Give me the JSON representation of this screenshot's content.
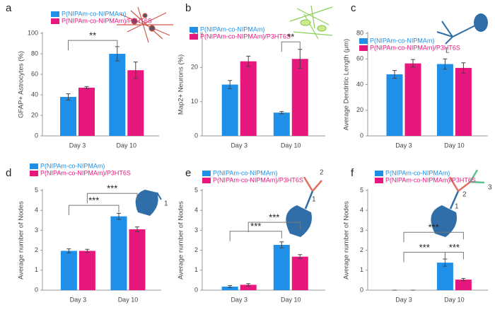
{
  "chart_data": [
    {
      "type": "bar",
      "label": "a",
      "ylabel": "GFAP+ Astrocytes (%)",
      "categories": [
        "Day 3",
        "Day 10"
      ],
      "ylim": [
        0,
        100
      ],
      "yticks": [
        0,
        20,
        40,
        60,
        80,
        100
      ],
      "series": [
        {
          "name": "P(NIPAm-co-NIPMAm)",
          "color": "#1f8fe8",
          "values": [
            38,
            80
          ],
          "errors": [
            3,
            7
          ]
        },
        {
          "name": "P(NIPAm-co-NIPMAm)/P3HT6S",
          "color": "#e8177d",
          "values": [
            47,
            64
          ],
          "errors": [
            1,
            8
          ]
        }
      ],
      "annotations": [
        "**"
      ]
    },
    {
      "type": "bar",
      "label": "b",
      "ylabel": "Map2+ Neurons (%)",
      "categories": [
        "Day 3",
        "Day 10"
      ],
      "ylim": [
        0,
        30
      ],
      "yticks": [
        0,
        10,
        20,
        30
      ],
      "series": [
        {
          "name": "P(NIPAm-co-NIPMAm)",
          "color": "#1f8fe8",
          "values": [
            15,
            6.8
          ],
          "errors": [
            1.2,
            0.3
          ]
        },
        {
          "name": "P(NIPAm-co-NIPMAm)/P3HT6S",
          "color": "#e8177d",
          "values": [
            21.8,
            22.5
          ],
          "errors": [
            1.5,
            2.8
          ]
        }
      ],
      "annotations": [
        "**"
      ]
    },
    {
      "type": "bar",
      "label": "c",
      "ylabel": "Average Dendritic Length (μm)",
      "categories": [
        "Day 3",
        "Day 10"
      ],
      "ylim": [
        0,
        80
      ],
      "yticks": [
        0,
        20,
        40,
        60,
        80
      ],
      "series": [
        {
          "name": "P(NIPAm-co-NIPMAm)",
          "color": "#1f8fe8",
          "values": [
            48,
            56
          ],
          "errors": [
            3,
            4
          ]
        },
        {
          "name": "P(NIPAm-co-NIPMAm)/P3HT6S",
          "color": "#e8177d",
          "values": [
            56.5,
            53
          ],
          "errors": [
            3,
            4
          ]
        }
      ],
      "annotations": [],
      "icon_labels": [
        "L"
      ]
    },
    {
      "type": "bar",
      "label": "d",
      "ylabel": "Average number of Nodes",
      "categories": [
        "Day 3",
        "Day 10"
      ],
      "ylim": [
        0,
        5
      ],
      "yticks": [
        0,
        1,
        2,
        3,
        4,
        5
      ],
      "series": [
        {
          "name": "P(NIPAm-co-NIPMAm)",
          "color": "#1f8fe8",
          "values": [
            1.97,
            3.7
          ],
          "errors": [
            0.1,
            0.15
          ]
        },
        {
          "name": "P(NIPAm-co-NIPMAm)/P3HT6S",
          "color": "#e8177d",
          "values": [
            1.97,
            3.05
          ],
          "errors": [
            0.08,
            0.12
          ]
        }
      ],
      "annotations": [
        "***",
        "***"
      ],
      "icon_labels": [
        "1"
      ]
    },
    {
      "type": "bar",
      "label": "e",
      "ylabel": "Average number of Nodes",
      "categories": [
        "Day 3",
        "Day 10"
      ],
      "ylim": [
        0,
        5
      ],
      "yticks": [
        0,
        1,
        2,
        3,
        4,
        5
      ],
      "series": [
        {
          "name": "P(NIPAm-co-NIPMAm)",
          "color": "#1f8fe8",
          "values": [
            0.18,
            2.27
          ],
          "errors": [
            0.05,
            0.15
          ]
        },
        {
          "name": "P(NIPAm-co-NIPMAm)/P3HT6S",
          "color": "#e8177d",
          "values": [
            0.27,
            1.68
          ],
          "errors": [
            0.06,
            0.1
          ]
        }
      ],
      "annotations": [
        "***",
        "***"
      ],
      "icon_labels": [
        "1",
        "2"
      ]
    },
    {
      "type": "bar",
      "label": "f",
      "ylabel": "Average number of Nodes",
      "categories": [
        "Day 3",
        "Day 10"
      ],
      "ylim": [
        0,
        5
      ],
      "yticks": [
        0,
        1,
        2,
        3,
        4,
        5
      ],
      "series": [
        {
          "name": "P(NIPAm-co-NIPMAm)",
          "color": "#1f8fe8",
          "values": [
            0,
            1.38
          ],
          "errors": [
            0,
            0.18
          ]
        },
        {
          "name": "P(NIPAm-co-NIPMAm)/P3HT6S",
          "color": "#e8177d",
          "values": [
            0,
            0.53
          ],
          "errors": [
            0,
            0.06
          ]
        }
      ],
      "annotations": [
        "***",
        "***",
        "***"
      ],
      "icon_labels": [
        "1",
        "2",
        "3"
      ]
    }
  ]
}
